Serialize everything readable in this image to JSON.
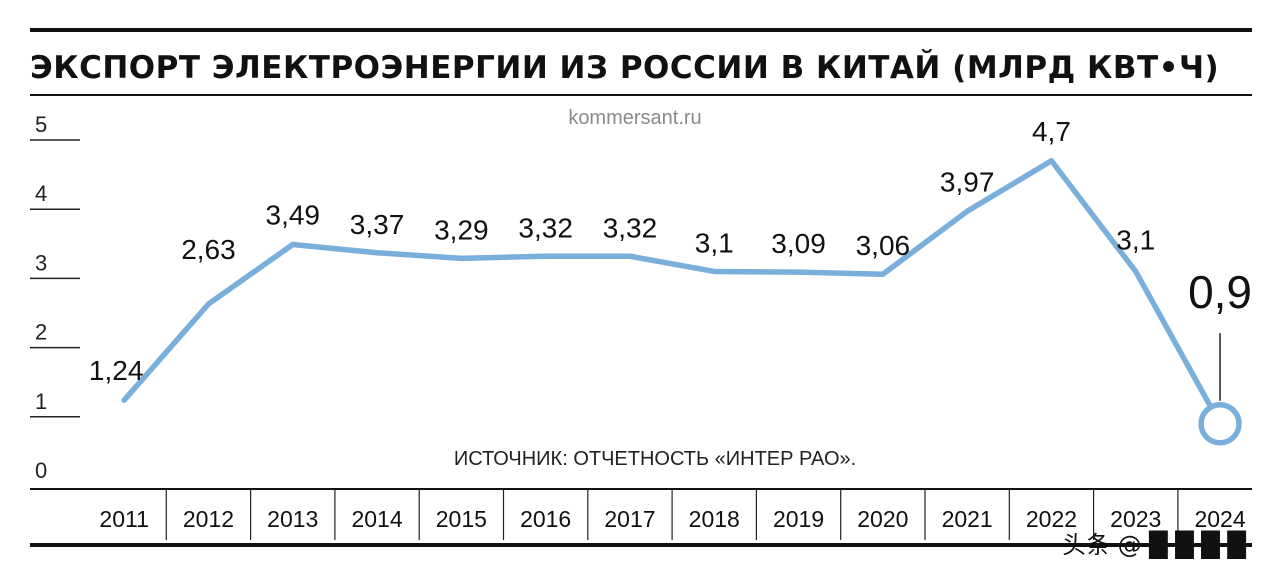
{
  "chart_data": {
    "type": "line",
    "title": "ЭКСПОРТ ЭЛЕКТРОЭНЕРГИИ ИЗ РОССИИ В КИТАЙ (МЛРД КВТ•Ч)",
    "categories": [
      "2011",
      "2012",
      "2013",
      "2014",
      "2015",
      "2016",
      "2017",
      "2018",
      "2019",
      "2020",
      "2021",
      "2022",
      "2023",
      "2024"
    ],
    "values": [
      1.24,
      2.63,
      3.49,
      3.37,
      3.29,
      3.32,
      3.32,
      3.1,
      3.09,
      3.06,
      3.97,
      4.7,
      3.1,
      0.9
    ],
    "value_labels": [
      "1,24",
      "2,63",
      "3,49",
      "3,37",
      "3,29",
      "3,32",
      "3,32",
      "3,1",
      "3,09",
      "3,06",
      "3,97",
      "4,7",
      "3,1",
      "0,9"
    ],
    "ylim": [
      0,
      5
    ],
    "yticks": [
      "0",
      "1",
      "2",
      "3",
      "4",
      "5"
    ],
    "line_color": "#7aaedb",
    "highlight_last": true
  },
  "header": {
    "site": "kommersant.ru"
  },
  "footer": {
    "source": "ИСТОЧНИК: ОТЧЕТНОСТЬ «ИНТЕР РАО»."
  },
  "watermark": {
    "text": "头条 @ █ █ █ █"
  }
}
